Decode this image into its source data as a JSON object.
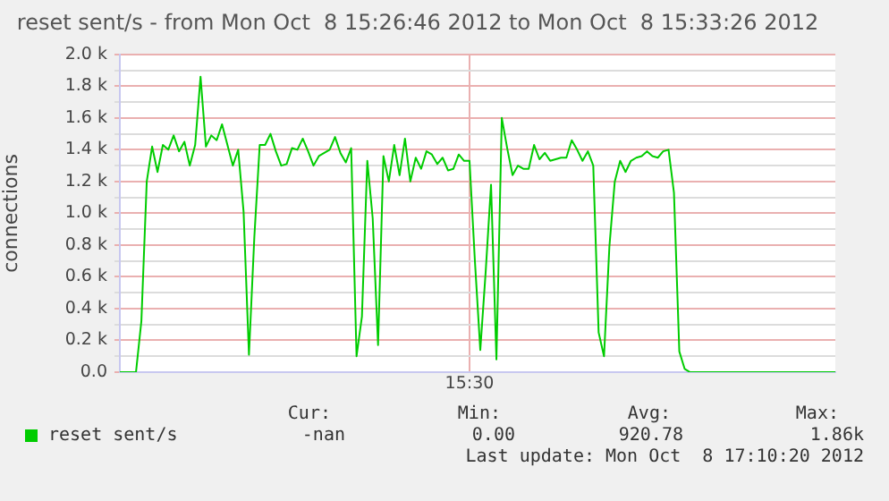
{
  "chart_data": {
    "type": "line",
    "title": "reset sent/s - from Mon Oct  8 15:26:46 2012 to Mon Oct  8 15:33:26 2012",
    "ylabel": "connections",
    "categories": [
      null,
      null,
      null,
      null,
      null,
      null,
      null,
      null,
      null,
      null,
      null,
      null,
      null,
      null,
      null,
      null,
      null,
      null,
      null,
      null,
      null,
      null,
      null,
      null,
      null,
      null,
      null,
      null,
      null,
      null,
      null,
      null,
      null,
      null,
      null,
      null,
      null,
      null,
      null,
      null,
      null,
      null,
      null,
      null,
      null,
      null,
      null,
      null,
      null,
      null,
      null,
      null,
      null,
      null,
      null,
      null,
      null,
      null,
      null,
      null,
      null,
      null,
      null,
      null,
      null,
      "15:30",
      null,
      null,
      null,
      null,
      null,
      null,
      null,
      null,
      null,
      null,
      null,
      null,
      null,
      null,
      null,
      null,
      null,
      null,
      null,
      null,
      null,
      null,
      null,
      null,
      null,
      null,
      null,
      null,
      null,
      null,
      null,
      null,
      null,
      null,
      null,
      null,
      null,
      null,
      null,
      null,
      null,
      null,
      null,
      null,
      null,
      null,
      null,
      null,
      null,
      null,
      null,
      null,
      null,
      null,
      null,
      null,
      null,
      null,
      null,
      null,
      null,
      null,
      null,
      null,
      null,
      null,
      null,
      null
    ],
    "ylim": [
      0,
      2000
    ],
    "yticks": [
      {
        "value": 0,
        "label": "0.0"
      },
      {
        "value": 100,
        "label": null
      },
      {
        "value": 200,
        "label": "0.2 k"
      },
      {
        "value": 300,
        "label": null
      },
      {
        "value": 400,
        "label": "0.4 k"
      },
      {
        "value": 500,
        "label": null
      },
      {
        "value": 600,
        "label": "0.6 k"
      },
      {
        "value": 700,
        "label": null
      },
      {
        "value": 800,
        "label": "0.8 k"
      },
      {
        "value": 900,
        "label": null
      },
      {
        "value": 1000,
        "label": "1.0 k"
      },
      {
        "value": 1100,
        "label": null
      },
      {
        "value": 1200,
        "label": "1.2 k"
      },
      {
        "value": 1300,
        "label": null
      },
      {
        "value": 1400,
        "label": "1.4 k"
      },
      {
        "value": 1500,
        "label": null
      },
      {
        "value": 1600,
        "label": "1.6 k"
      },
      {
        "value": 1700,
        "label": null
      },
      {
        "value": 1800,
        "label": "1.8 k"
      },
      {
        "value": 1900,
        "label": null
      },
      {
        "value": 2000,
        "label": "2.0 k"
      }
    ],
    "grid": true,
    "legend": "bottom left",
    "marker": "none",
    "line_style": "solid",
    "annotations": [
      "Cur:",
      "Min:",
      "Avg:",
      "Max:",
      "-nan",
      "0.00",
      "920.78",
      "1.86k",
      "Last update: Mon Oct  8 17:10:20 2012"
    ],
    "series": [
      {
        "name": "reset sent/s",
        "color": "#00cc00",
        "values": [
          0,
          0,
          0,
          0,
          320,
          1200,
          1420,
          1260,
          1430,
          1400,
          1490,
          1390,
          1450,
          1300,
          1430,
          1860,
          1420,
          1490,
          1460,
          1560,
          1430,
          1300,
          1400,
          1010,
          110,
          850,
          1430,
          1430,
          1500,
          1390,
          1300,
          1310,
          1410,
          1400,
          1470,
          1390,
          1300,
          1360,
          1380,
          1400,
          1480,
          1380,
          1320,
          1410,
          100,
          350,
          1330,
          970,
          170,
          1360,
          1200,
          1430,
          1240,
          1470,
          1200,
          1350,
          1280,
          1390,
          1370,
          1310,
          1350,
          1270,
          1280,
          1370,
          1330,
          1330,
          700,
          140,
          630,
          1180,
          80,
          1600,
          1410,
          1240,
          1300,
          1280,
          1280,
          1430,
          1340,
          1380,
          1330,
          1340,
          1350,
          1350,
          1460,
          1400,
          1330,
          1390,
          1300,
          250,
          100,
          790,
          1200,
          1330,
          1260,
          1330,
          1350,
          1360,
          1390,
          1360,
          1350,
          1390,
          1400,
          1130,
          130,
          20,
          0,
          0,
          0,
          0,
          0,
          0,
          0,
          0,
          0,
          0,
          0,
          0,
          0,
          0,
          0,
          0,
          0,
          0,
          0,
          0,
          0,
          0,
          0,
          0,
          0,
          0,
          0,
          0
        ]
      }
    ]
  }
}
